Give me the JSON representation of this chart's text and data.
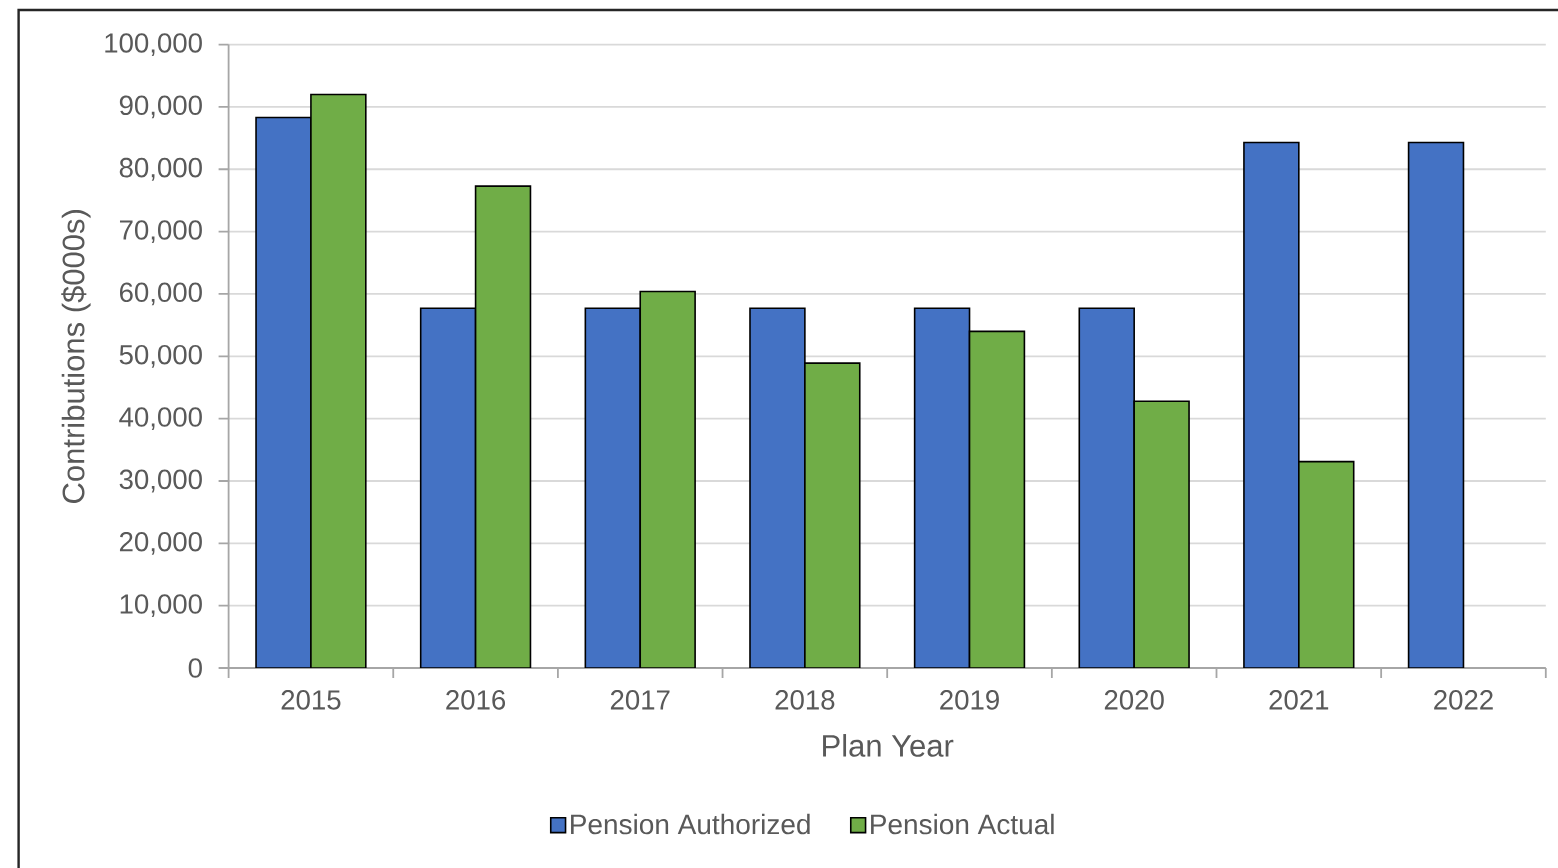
{
  "chart_data": {
    "type": "bar",
    "xlabel": "Plan Year",
    "ylabel": "Contributions ($000s)",
    "categories": [
      "2015",
      "2016",
      "2017",
      "2018",
      "2019",
      "2020",
      "2021",
      "2022"
    ],
    "series": [
      {
        "name": "Pension Authorized",
        "color": "#4472c4",
        "values": [
          88300,
          57700,
          57700,
          57700,
          57700,
          57700,
          84300,
          84300
        ]
      },
      {
        "name": "Pension Actual",
        "color": "#70ad47",
        "values": [
          92000,
          77300,
          60400,
          48900,
          54000,
          42800,
          33100,
          null
        ]
      }
    ],
    "ylim": [
      0,
      100000
    ],
    "yticks": [
      0,
      {
        "value": 10000,
        "label": "10,000"
      },
      {
        "value": 20000,
        "label": "20,000"
      },
      {
        "value": 30000,
        "label": "30,000"
      },
      {
        "value": 40000,
        "label": "40,000"
      },
      {
        "value": 50000,
        "label": "50,000"
      },
      {
        "value": 60000,
        "label": "60,000"
      },
      {
        "value": 70000,
        "label": "70,000"
      },
      {
        "value": 80000,
        "label": "80,000"
      },
      {
        "value": 90000,
        "label": "90,000"
      },
      {
        "value": 100000,
        "label": "100,000"
      }
    ],
    "grid": "y",
    "legend": "bottom"
  }
}
